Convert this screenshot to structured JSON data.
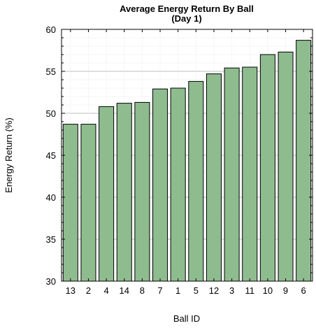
{
  "chart_data": {
    "type": "bar",
    "title": "Average Energy Return By Ball",
    "subtitle": "(Day 1)",
    "xlabel": "Ball ID",
    "ylabel": "Energy Return (%)",
    "categories": [
      "13",
      "2",
      "4",
      "14",
      "8",
      "7",
      "1",
      "5",
      "12",
      "3",
      "11",
      "10",
      "9",
      "6"
    ],
    "values": [
      48.7,
      48.7,
      50.8,
      51.2,
      51.3,
      52.9,
      53.0,
      53.8,
      54.7,
      55.4,
      55.5,
      57.0,
      57.3,
      58.7
    ],
    "ylim": [
      30,
      60
    ],
    "yticks": [
      30,
      35,
      40,
      45,
      50,
      55,
      60
    ],
    "grid": true,
    "bar_color": "#8fbc8f",
    "bar_edge_color": "#000000"
  }
}
